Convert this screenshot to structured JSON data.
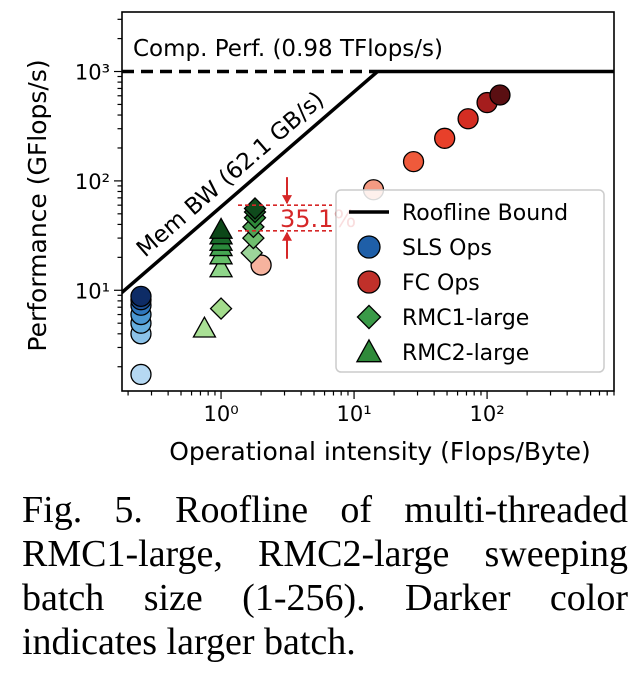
{
  "chart_data": {
    "type": "scatter",
    "title": "",
    "xlabel": "Operational intensity (Flops/Byte)",
    "ylabel": "Performance (GFlops/s)",
    "xscale": "log",
    "yscale": "log",
    "xlim": [
      0.18,
      900
    ],
    "ylim": [
      1.2,
      3500
    ],
    "xticks": [
      {
        "value": 1,
        "label": "10⁰"
      },
      {
        "value": 10,
        "label": "10¹"
      },
      {
        "value": 100,
        "label": "10²"
      }
    ],
    "yticks": [
      {
        "value": 10,
        "label": "10¹"
      },
      {
        "value": 100,
        "label": "10²"
      },
      {
        "value": 1000,
        "label": "10³"
      }
    ],
    "roofline": {
      "compute_peak": 1000,
      "bandwidth_line": [
        [
          0.17,
          9
        ],
        [
          15,
          1000
        ]
      ],
      "legend_label": "Roofline Bound"
    },
    "annotations": {
      "compute_label": "Comp. Perf. (0.98 TFlops/s)",
      "bandwidth_label": "Mem BW (62.1 GB/s)",
      "gap_label": "35.1%"
    },
    "legend": {
      "placement": "lower-right",
      "entries": [
        {
          "label": "Roofline Bound",
          "marker": "line"
        },
        {
          "label": "SLS Ops",
          "marker": "circle",
          "color": "#1f5fa8"
        },
        {
          "label": "FC Ops",
          "marker": "circle",
          "color": "#c0302a"
        },
        {
          "label": "RMC1-large",
          "marker": "diamond",
          "color": "#3a9a48"
        },
        {
          "label": "RMC2-large",
          "marker": "triangle",
          "color": "#2f8a3a"
        }
      ]
    },
    "series": [
      {
        "name": "SLS Ops",
        "marker": "circle",
        "points": [
          {
            "x": 0.25,
            "y": 1.7,
            "color": "#b5d8f2"
          },
          {
            "x": 0.25,
            "y": 4.0,
            "color": "#8cc2e8"
          },
          {
            "x": 0.25,
            "y": 5.0,
            "color": "#66aede"
          },
          {
            "x": 0.25,
            "y": 6.0,
            "color": "#4b97d2"
          },
          {
            "x": 0.25,
            "y": 7.3,
            "color": "#2e76bd"
          },
          {
            "x": 0.25,
            "y": 8.2,
            "color": "#1c4f94"
          },
          {
            "x": 0.25,
            "y": 8.8,
            "color": "#0e2c66"
          }
        ]
      },
      {
        "name": "FC Ops",
        "marker": "circle",
        "points": [
          {
            "x": 2.0,
            "y": 17,
            "color": "#f6b39e"
          },
          {
            "x": 14,
            "y": 83,
            "color": "#f49a82"
          },
          {
            "x": 28,
            "y": 150,
            "color": "#ef5a3b"
          },
          {
            "x": 48,
            "y": 245,
            "color": "#e8402a"
          },
          {
            "x": 72,
            "y": 370,
            "color": "#d42d22"
          },
          {
            "x": 100,
            "y": 520,
            "color": "#a51d1d"
          },
          {
            "x": 125,
            "y": 610,
            "color": "#5a0f12"
          }
        ]
      },
      {
        "name": "RMC1-large",
        "marker": "diamond",
        "points": [
          {
            "x": 1.0,
            "y": 6.8,
            "color": "#a3dc8c"
          },
          {
            "x": 1.7,
            "y": 22,
            "color": "#9cd59a"
          },
          {
            "x": 1.75,
            "y": 30,
            "color": "#6fbd6e"
          },
          {
            "x": 1.75,
            "y": 38,
            "color": "#4ea356"
          },
          {
            "x": 1.8,
            "y": 46,
            "color": "#2f8a3a"
          },
          {
            "x": 1.8,
            "y": 52,
            "color": "#1d6b2a"
          },
          {
            "x": 1.8,
            "y": 56,
            "color": "#0f4a1c"
          }
        ]
      },
      {
        "name": "RMC2-large",
        "marker": "triangle",
        "points": [
          {
            "x": 0.75,
            "y": 4.5,
            "color": "#a9e095"
          },
          {
            "x": 1.0,
            "y": 16,
            "color": "#8fd68a"
          },
          {
            "x": 1.0,
            "y": 21,
            "color": "#66c06a"
          },
          {
            "x": 1.0,
            "y": 25,
            "color": "#45a552"
          },
          {
            "x": 1.0,
            "y": 28,
            "color": "#2b8a3c"
          },
          {
            "x": 1.0,
            "y": 32,
            "color": "#1a6b2b"
          },
          {
            "x": 1.0,
            "y": 36,
            "color": "#0c4718"
          }
        ]
      }
    ]
  },
  "caption": "Fig. 5. Roofline of multi-threaded RMC1-large, RMC2-large sweeping batch size (1-256). Darker color indicates larger batch."
}
